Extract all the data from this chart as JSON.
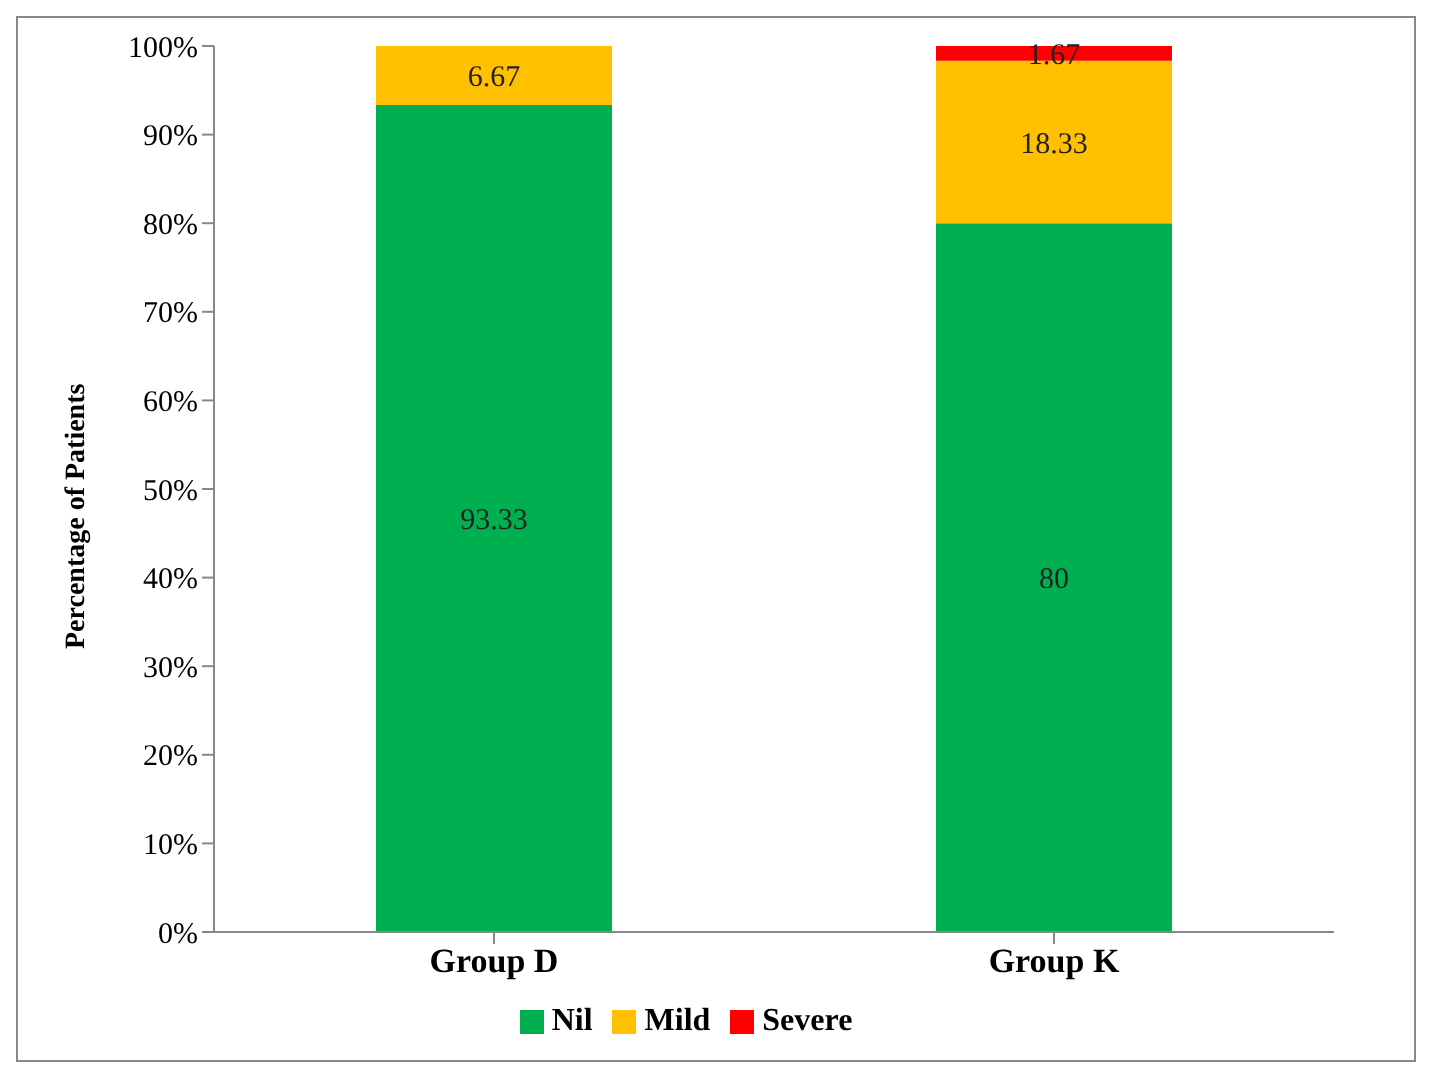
{
  "chart_data": {
    "type": "bar",
    "stacked": true,
    "ylabel": "Percentage of Patients",
    "categories": [
      "Group D",
      "Group K"
    ],
    "series": [
      {
        "name": "Nil",
        "color": "#00b050",
        "values": [
          93.33,
          80
        ]
      },
      {
        "name": "Mild",
        "color": "#ffc000",
        "values": [
          6.67,
          18.33
        ]
      },
      {
        "name": "Severe",
        "color": "#ff0000",
        "values": [
          null,
          1.67
        ]
      }
    ],
    "ylim": [
      0,
      100
    ],
    "yticks": [
      {
        "value": 0,
        "label": "0%"
      },
      {
        "value": 10,
        "label": "10%"
      },
      {
        "value": 20,
        "label": "20%"
      },
      {
        "value": 30,
        "label": "30%"
      },
      {
        "value": 40,
        "label": "40%"
      },
      {
        "value": 50,
        "label": "50%"
      },
      {
        "value": 60,
        "label": "60%"
      },
      {
        "value": 70,
        "label": "70%"
      },
      {
        "value": 80,
        "label": "80%"
      },
      {
        "value": 90,
        "label": "90%"
      },
      {
        "value": 100,
        "label": "100%"
      }
    ],
    "data_labels": true,
    "grid": false,
    "legend": "bottom"
  }
}
